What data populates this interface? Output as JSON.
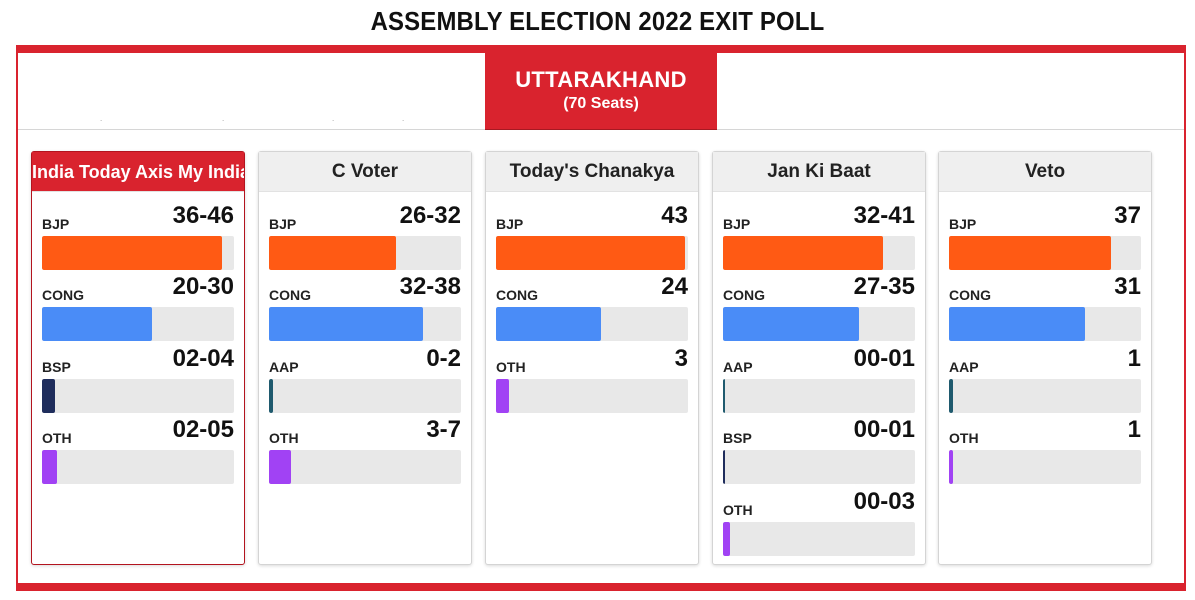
{
  "page": {
    "title": "ASSEMBLY ELECTION 2022 EXIT POLL"
  },
  "state_tab": {
    "name": "UTTARAKHAND",
    "seats": "(70 Seats)"
  },
  "colors": {
    "accent": "#d9232e",
    "BJP": "#ff5a14",
    "CONG": "#4a8cf7",
    "BSP": "#1f2d5c",
    "AAP": "#1f5a6e",
    "OTH": "#a142f4",
    "track": "#e8e8e8"
  },
  "chart_data": {
    "type": "bar",
    "orientation": "horizontal",
    "total_seats": 70,
    "xlim": [
      0,
      70
    ],
    "polls": [
      {
        "pollster": "India Today Axis My India",
        "active": true,
        "parties": [
          {
            "name": "BJP",
            "label": "36-46",
            "range": [
              36,
              46
            ]
          },
          {
            "name": "CONG",
            "label": "20-30",
            "range": [
              20,
              30
            ]
          },
          {
            "name": "BSP",
            "label": "02-04",
            "range": [
              2,
              4
            ]
          },
          {
            "name": "OTH",
            "label": "02-05",
            "range": [
              2,
              5
            ]
          }
        ]
      },
      {
        "pollster": "C Voter",
        "active": false,
        "parties": [
          {
            "name": "BJP",
            "label": "26-32",
            "range": [
              26,
              32
            ]
          },
          {
            "name": "CONG",
            "label": "32-38",
            "range": [
              32,
              38
            ]
          },
          {
            "name": "AAP",
            "label": "0-2",
            "range": [
              0,
              2
            ]
          },
          {
            "name": "OTH",
            "label": "3-7",
            "range": [
              3,
              7
            ]
          }
        ]
      },
      {
        "pollster": "Today's Chanakya",
        "active": false,
        "parties": [
          {
            "name": "BJP",
            "label": "43",
            "range": [
              43,
              43
            ]
          },
          {
            "name": "CONG",
            "label": "24",
            "range": [
              24,
              24
            ]
          },
          {
            "name": "OTH",
            "label": "3",
            "range": [
              3,
              3
            ]
          }
        ]
      },
      {
        "pollster": "Jan Ki Baat",
        "active": false,
        "parties": [
          {
            "name": "BJP",
            "label": "32-41",
            "range": [
              32,
              41
            ]
          },
          {
            "name": "CONG",
            "label": "27-35",
            "range": [
              27,
              35
            ]
          },
          {
            "name": "AAP",
            "label": "00-01",
            "range": [
              0,
              1
            ]
          },
          {
            "name": "BSP",
            "label": "00-01",
            "range": [
              0,
              1
            ]
          },
          {
            "name": "OTH",
            "label": "00-03",
            "range": [
              0,
              3
            ]
          }
        ]
      },
      {
        "pollster": "Veto",
        "active": false,
        "parties": [
          {
            "name": "BJP",
            "label": "37",
            "range": [
              37,
              37
            ]
          },
          {
            "name": "CONG",
            "label": "31",
            "range": [
              31,
              31
            ]
          },
          {
            "name": "AAP",
            "label": "1",
            "range": [
              1,
              1
            ]
          },
          {
            "name": "OTH",
            "label": "1",
            "range": [
              1,
              1
            ]
          }
        ]
      }
    ]
  }
}
